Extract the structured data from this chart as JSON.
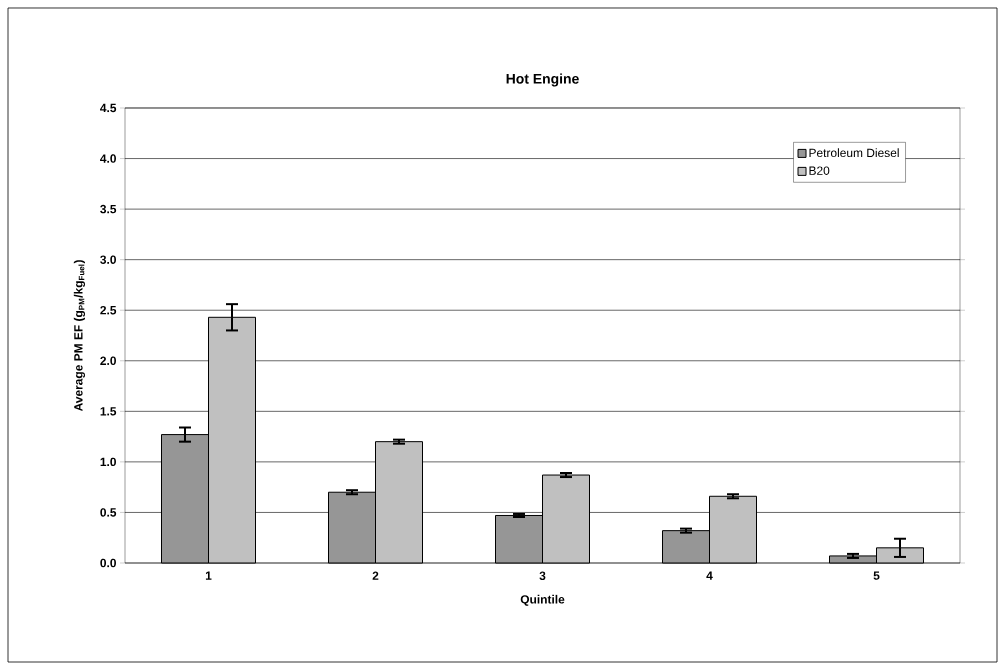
{
  "chart_data": {
    "type": "bar",
    "title": "Hot Engine",
    "xlabel": "Quintile",
    "ylabel": "Average PM EF (g$_{PM}$/kg$_{Fuel}$)",
    "categories": [
      "1",
      "2",
      "3",
      "4",
      "5"
    ],
    "series": [
      {
        "name": "Petroleum Diesel",
        "color": "#969696",
        "values": [
          1.27,
          0.7,
          0.47,
          0.32,
          0.07
        ],
        "errors": [
          0.07,
          0.02,
          0.015,
          0.02,
          0.02
        ]
      },
      {
        "name": "B20",
        "color": "#c0c0c0",
        "values": [
          2.43,
          1.2,
          0.87,
          0.66,
          0.15
        ],
        "errors": [
          0.13,
          0.02,
          0.02,
          0.02,
          0.09
        ]
      }
    ],
    "ylim": [
      0,
      4.5
    ],
    "yticks": [
      {
        "value": 0,
        "label": "0.0"
      },
      {
        "value": 0.5,
        "label": "0.5"
      },
      {
        "value": 1,
        "label": "1.0"
      },
      {
        "value": 1.5,
        "label": "1.5"
      },
      {
        "value": 2,
        "label": "2.0"
      },
      {
        "value": 2.5,
        "label": "2.5"
      },
      {
        "value": 3,
        "label": "3.0"
      },
      {
        "value": 3.5,
        "label": "3.5"
      },
      {
        "value": 4,
        "label": "4.0"
      },
      {
        "value": 4.5,
        "label": "4.5"
      }
    ],
    "grid": "y",
    "legend": "top right"
  }
}
